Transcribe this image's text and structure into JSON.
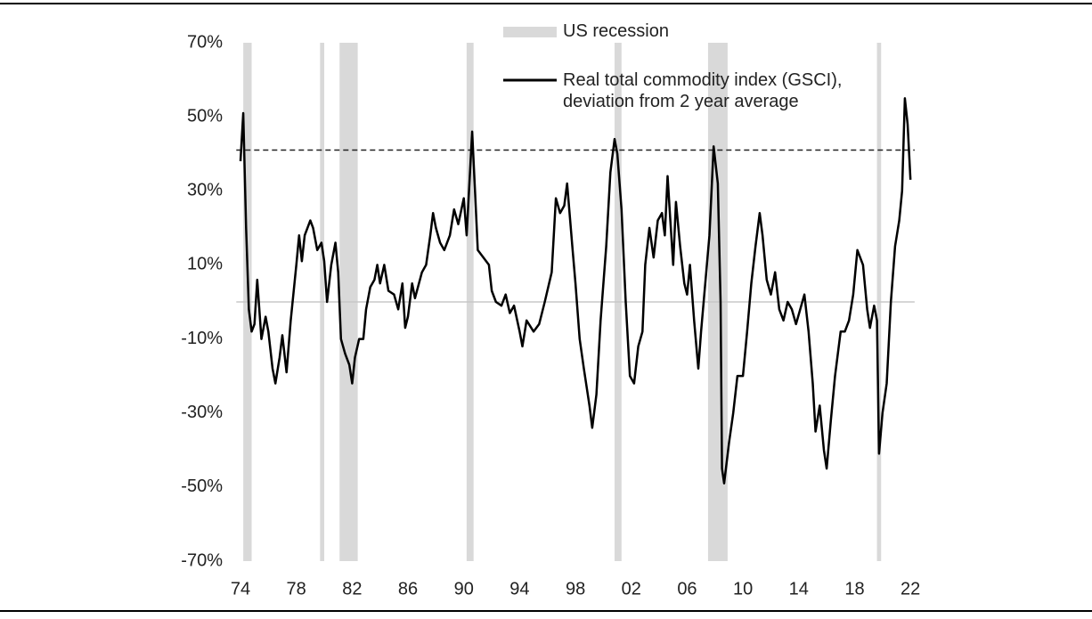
{
  "chart_data": {
    "type": "line",
    "xlim": [
      1973.7,
      2022.3
    ],
    "ylim": [
      -70,
      70
    ],
    "yticks": [
      {
        "value": -70,
        "label": "-70%"
      },
      {
        "value": -50,
        "label": "-50%"
      },
      {
        "value": -30,
        "label": "-30%"
      },
      {
        "value": -10,
        "label": "-10%"
      },
      {
        "value": 10,
        "label": "10%"
      },
      {
        "value": 30,
        "label": "30%"
      },
      {
        "value": 50,
        "label": "50%"
      },
      {
        "value": 70,
        "label": "70%"
      }
    ],
    "xticks": [
      {
        "value": 1974,
        "label": "74"
      },
      {
        "value": 1978,
        "label": "78"
      },
      {
        "value": 1982,
        "label": "82"
      },
      {
        "value": 1986,
        "label": "86"
      },
      {
        "value": 1990,
        "label": "90"
      },
      {
        "value": 1994,
        "label": "94"
      },
      {
        "value": 1998,
        "label": "98"
      },
      {
        "value": 2002,
        "label": "02"
      },
      {
        "value": 2006,
        "label": "06"
      },
      {
        "value": 2010,
        "label": "10"
      },
      {
        "value": 2014,
        "label": "14"
      },
      {
        "value": 2018,
        "label": "18"
      },
      {
        "value": 2022,
        "label": "22"
      }
    ],
    "recession_label": "US recession",
    "recession_color": "#d9d9d9",
    "recessions": [
      [
        1974.2,
        1974.8
      ],
      [
        1979.7,
        1980.0
      ],
      [
        1981.1,
        1982.4
      ],
      [
        1990.2,
        1990.7
      ],
      [
        2000.8,
        2001.3
      ],
      [
        2007.5,
        2008.9
      ],
      [
        2019.6,
        2019.9
      ]
    ],
    "reference_lines": [
      {
        "value": 41,
        "style": "dashed",
        "color": "#222"
      },
      {
        "value": 0,
        "style": "solid",
        "color": "#c8c8c8"
      }
    ],
    "x": [
      1974.0,
      1974.2,
      1974.4,
      1974.6,
      1974.8,
      1975.0,
      1975.2,
      1975.5,
      1975.8,
      1976.0,
      1976.3,
      1976.5,
      1976.8,
      1977.0,
      1977.3,
      1977.6,
      1978.0,
      1978.2,
      1978.4,
      1978.6,
      1979.0,
      1979.2,
      1979.5,
      1979.8,
      1980.0,
      1980.2,
      1980.5,
      1980.8,
      1981.0,
      1981.2,
      1981.5,
      1981.8,
      1982.0,
      1982.2,
      1982.5,
      1982.8,
      1983.0,
      1983.3,
      1983.6,
      1983.8,
      1984.0,
      1984.3,
      1984.6,
      1985.0,
      1985.3,
      1985.6,
      1985.8,
      1986.0,
      1986.3,
      1986.5,
      1987.0,
      1987.3,
      1987.6,
      1987.8,
      1988.0,
      1988.3,
      1988.6,
      1989.0,
      1989.3,
      1989.6,
      1990.0,
      1990.2,
      1990.6,
      1990.8,
      1991.0,
      1991.4,
      1991.8,
      1992.0,
      1992.3,
      1992.7,
      1993.0,
      1993.3,
      1993.6,
      1994.0,
      1994.2,
      1994.5,
      1995.0,
      1995.4,
      1995.8,
      1996.3,
      1996.6,
      1996.9,
      1997.2,
      1997.4,
      1997.8,
      1998.0,
      1998.3,
      1998.6,
      1999.0,
      1999.2,
      1999.5,
      1999.8,
      2000.2,
      2000.5,
      2000.8,
      2001.0,
      2001.3,
      2001.6,
      2001.9,
      2002.2,
      2002.5,
      2002.8,
      2003.0,
      2003.3,
      2003.6,
      2003.9,
      2004.2,
      2004.4,
      2004.6,
      2004.8,
      2005.0,
      2005.2,
      2005.5,
      2005.8,
      2006.0,
      2006.2,
      2006.5,
      2006.8,
      2007.0,
      2007.3,
      2007.6,
      2007.9,
      2008.2,
      2008.4,
      2008.5,
      2008.65,
      2009.0,
      2009.3,
      2009.6,
      2010.0,
      2010.3,
      2010.6,
      2010.9,
      2011.2,
      2011.4,
      2011.7,
      2012.0,
      2012.3,
      2012.6,
      2012.9,
      2013.2,
      2013.5,
      2013.8,
      2014.1,
      2014.4,
      2014.7,
      2015.0,
      2015.2,
      2015.5,
      2015.8,
      2016.0,
      2016.3,
      2016.6,
      2017.0,
      2017.3,
      2017.6,
      2017.9,
      2018.2,
      2018.6,
      2018.9,
      2019.1,
      2019.4,
      2019.6,
      2019.75,
      2020.0,
      2020.3,
      2020.6,
      2020.9,
      2021.2,
      2021.4,
      2021.6,
      2021.8,
      2022.0
    ],
    "series": [
      {
        "name": "Real total commodity index (GSCI), deviation from 2 year average",
        "color": "#000000",
        "values": [
          38,
          51,
          20,
          -2,
          -8,
          -6,
          6,
          -10,
          -4,
          -8,
          -18,
          -22,
          -15,
          -9,
          -19,
          -5,
          10,
          18,
          11,
          18,
          22,
          20,
          14,
          16,
          11,
          0,
          10,
          16,
          8,
          -10,
          -14,
          -17,
          -22,
          -15,
          -10,
          -10,
          -2,
          4,
          6,
          10,
          5,
          10,
          3,
          2,
          -2,
          5,
          -7,
          -4,
          5,
          1,
          8,
          10,
          18,
          24,
          20,
          16,
          14,
          18,
          25,
          21,
          28,
          18,
          46,
          30,
          14,
          12,
          10,
          3,
          0,
          -1,
          2,
          -3,
          -1,
          -8,
          -12,
          -5,
          -8,
          -6,
          0,
          8,
          28,
          24,
          26,
          32,
          14,
          5,
          -10,
          -18,
          -28,
          -34,
          -25,
          -5,
          15,
          35,
          44,
          40,
          25,
          0,
          -20,
          -22,
          -12,
          -8,
          10,
          20,
          12,
          22,
          24,
          18,
          34,
          22,
          10,
          27,
          15,
          5,
          2,
          10,
          -5,
          -18,
          -8,
          5,
          18,
          42,
          32,
          0,
          -45,
          -49,
          -38,
          -30,
          -20,
          -20,
          -8,
          5,
          15,
          24,
          18,
          6,
          2,
          8,
          -2,
          -5,
          0,
          -2,
          -6,
          -2,
          2,
          -8,
          -22,
          -35,
          -28,
          -40,
          -45,
          -32,
          -20,
          -8,
          -8,
          -5,
          2,
          14,
          10,
          -2,
          -7,
          -1,
          -5,
          -41,
          -30,
          -22,
          0,
          15,
          22,
          30,
          55,
          48,
          33
        ]
      }
    ]
  }
}
